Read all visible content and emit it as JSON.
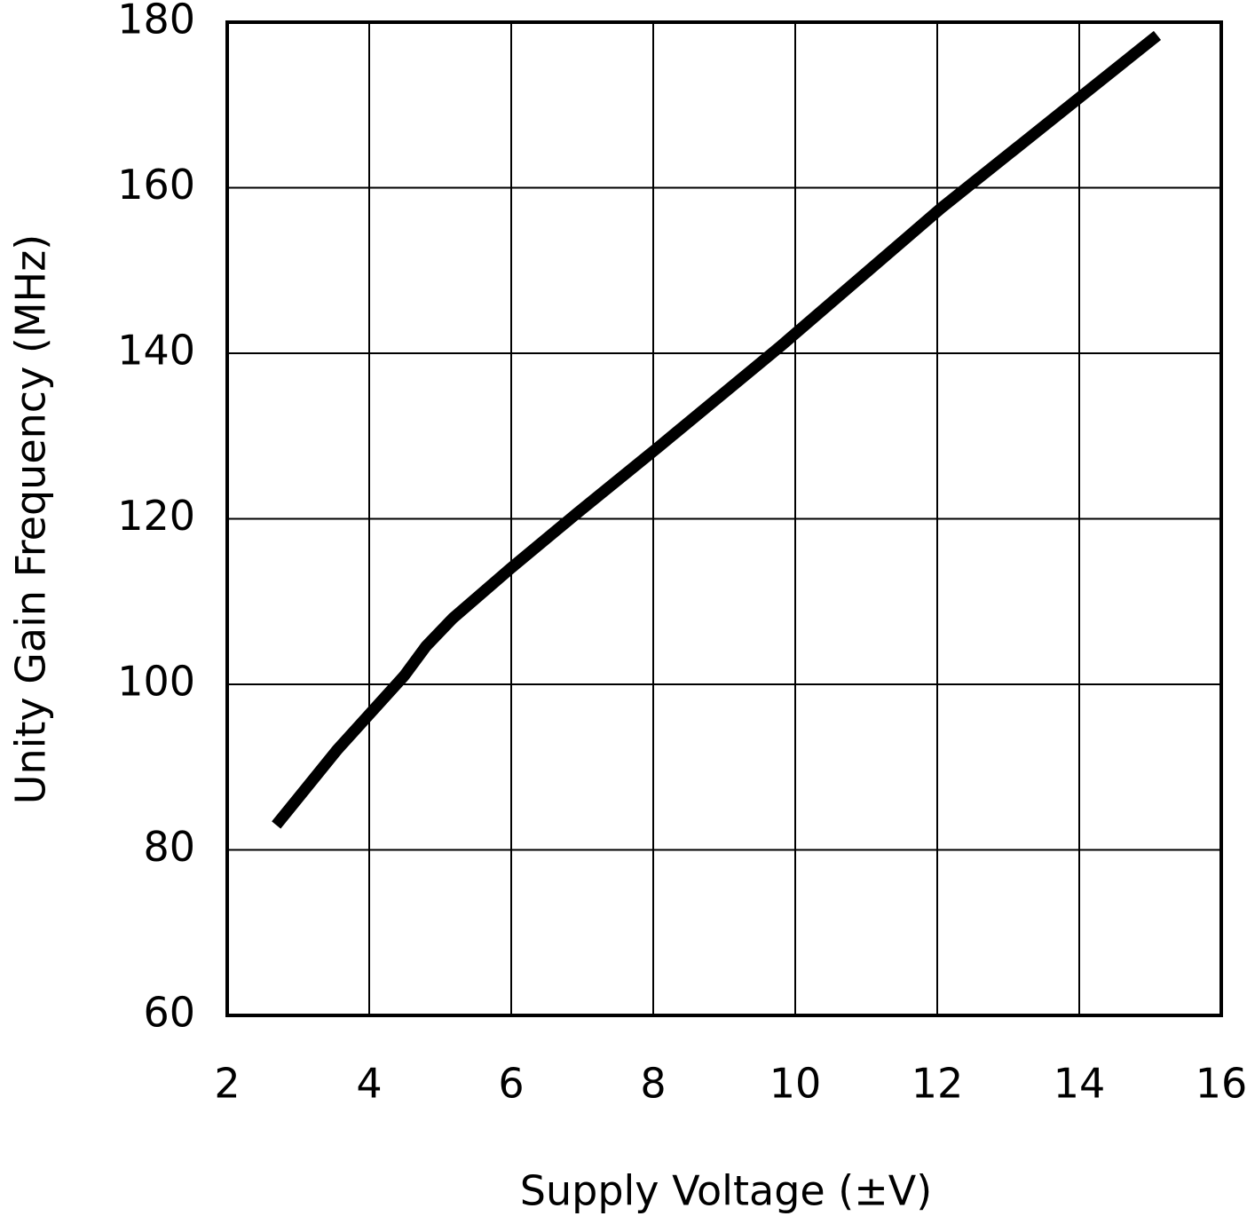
{
  "chart_data": {
    "type": "line",
    "x_label": "Supply Voltage (±V)",
    "y_label": "Unity Gain Frequency (MHz)",
    "series": [
      {
        "color": "#000000",
        "x": [
          2.69,
          3.55,
          4.49,
          4.8,
          5.18,
          5.99,
          6.93,
          8.05,
          9.8,
          12.05,
          15.1
        ],
        "values": [
          83,
          92.1,
          101,
          104.6,
          108,
          114,
          120.7,
          128.5,
          140.9,
          157.5,
          178.4
        ]
      }
    ],
    "xlim": [
      2,
      16
    ],
    "xticks": [
      2,
      4,
      6,
      8,
      10,
      12,
      14,
      16
    ],
    "ylim": [
      60,
      180
    ],
    "yticks": [
      60,
      80,
      100,
      120,
      140,
      160,
      180
    ],
    "grid": true
  }
}
